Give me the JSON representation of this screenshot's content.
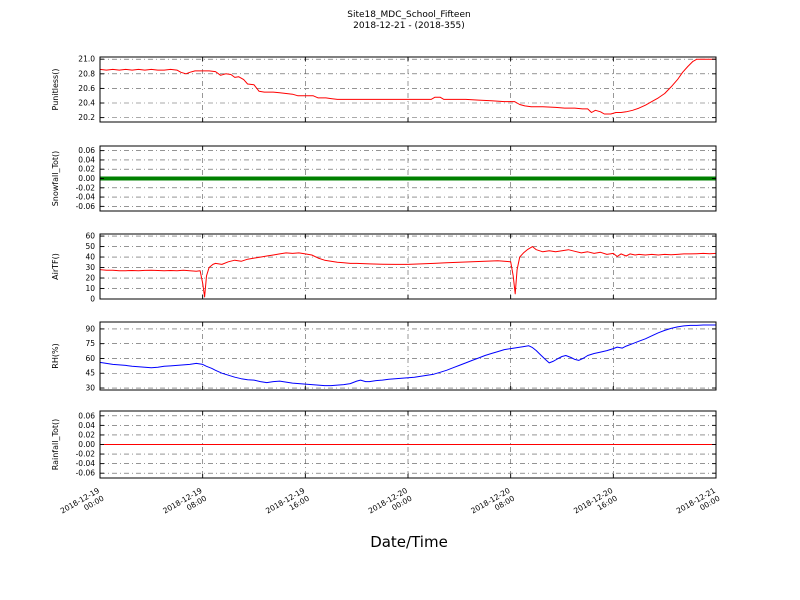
{
  "chart_data": {
    "type": "line",
    "title": "Site18_MDC_School_Fifteen",
    "subtitle": "2018-12-21 - (2018-355)",
    "xlabel": "Date/Time",
    "grid": true,
    "legend": "none",
    "x_axis": {
      "range": [
        0,
        48
      ],
      "ticks": [
        0,
        8,
        16,
        24,
        32,
        40,
        48
      ],
      "tick_labels": [
        "2018-12-19 00:00",
        "2018-12-19 08:00",
        "2018-12-19 16:00",
        "2018-12-20 00:00",
        "2018-12-20 08:00",
        "2018-12-20 16:00",
        "2018-12-21 00:00"
      ]
    },
    "panels": [
      {
        "ylabel": "Punitless()",
        "color": "#ff0000",
        "line_width": 1,
        "ylim": [
          20.14,
          21.03
        ],
        "ytick_values": [
          20.2,
          20.4,
          20.6,
          20.8,
          21.0
        ],
        "ytick_labels": [
          "20.2",
          "20.4",
          "20.6",
          "20.8",
          "21.0"
        ],
        "x": [
          0,
          0.5,
          1,
          1.5,
          2,
          2.5,
          3,
          3.5,
          4,
          4.5,
          5,
          5.5,
          6,
          6.3,
          6.7,
          7,
          7.4,
          8,
          8.5,
          9,
          9.4,
          9.8,
          10.2,
          10.5,
          10.8,
          11.2,
          11.5,
          12,
          12.4,
          12.8,
          13.5,
          14,
          14.5,
          15,
          15.4,
          16,
          16.6,
          17,
          17.6,
          18,
          18.5,
          19,
          20,
          21,
          22,
          23,
          24,
          25,
          25.8,
          26.1,
          26.5,
          26.8,
          27.5,
          28.5,
          29.5,
          30.5,
          31.5,
          32.3,
          32.7,
          33.1,
          33.6,
          34.5,
          35.5,
          36.2,
          37,
          37.6,
          38,
          38.3,
          38.6,
          39,
          39.3,
          39.8,
          40.2,
          40.6,
          41,
          41.5,
          42,
          42.5,
          43,
          43.5,
          44,
          44.5,
          45,
          45.4,
          45.8,
          46.2,
          46.5,
          47,
          47.5,
          48
        ],
        "y": [
          20.86,
          20.85,
          20.86,
          20.85,
          20.86,
          20.85,
          20.86,
          20.85,
          20.86,
          20.85,
          20.85,
          20.86,
          20.85,
          20.82,
          20.8,
          20.82,
          20.84,
          20.84,
          20.84,
          20.83,
          20.78,
          20.8,
          20.79,
          20.75,
          20.76,
          20.72,
          20.66,
          20.65,
          20.56,
          20.55,
          20.55,
          20.54,
          20.53,
          20.52,
          20.5,
          20.5,
          20.5,
          20.47,
          20.47,
          20.46,
          20.45,
          20.45,
          20.45,
          20.45,
          20.45,
          20.45,
          20.45,
          20.45,
          20.45,
          20.48,
          20.48,
          20.45,
          20.45,
          20.45,
          20.44,
          20.43,
          20.42,
          20.42,
          20.38,
          20.36,
          20.35,
          20.35,
          20.34,
          20.33,
          20.33,
          20.32,
          20.32,
          20.27,
          20.3,
          20.28,
          20.25,
          20.25,
          20.27,
          20.27,
          20.28,
          20.3,
          20.33,
          20.37,
          20.42,
          20.47,
          20.53,
          20.62,
          20.72,
          20.82,
          20.9,
          20.97,
          21.0,
          21.0,
          21.0,
          21.0
        ]
      },
      {
        "ylabel": "Snowfall_Tot()",
        "color": "#008000",
        "line_width": 4,
        "ylim": [
          -0.07,
          0.07
        ],
        "ytick_values": [
          -0.06,
          -0.04,
          -0.02,
          0.0,
          0.02,
          0.04,
          0.06
        ],
        "ytick_labels": [
          "-0.06",
          "-0.04",
          "-0.02",
          "0.00",
          "0.02",
          "0.04",
          "0.06"
        ],
        "x": [
          0,
          48
        ],
        "y": [
          0,
          0
        ]
      },
      {
        "ylabel": "AirTF()",
        "color": "#ff0000",
        "line_width": 1,
        "ylim": [
          0,
          62
        ],
        "ytick_values": [
          0,
          10,
          20,
          30,
          40,
          50,
          60
        ],
        "ytick_labels": [
          "0",
          "10",
          "20",
          "30",
          "40",
          "50",
          "60"
        ],
        "x": [
          0,
          0.5,
          1,
          1.5,
          2,
          2.5,
          3,
          3.5,
          4,
          4.5,
          5,
          5.5,
          6,
          6.5,
          7,
          7.5,
          7.8,
          8,
          8.15,
          8.3,
          8.5,
          8.8,
          9,
          9.5,
          10,
          10.5,
          11,
          11.5,
          12,
          12.5,
          13,
          13.5,
          14,
          14.5,
          15,
          15.5,
          16,
          16.5,
          17,
          17.5,
          18,
          18.5,
          19,
          19.5,
          20,
          21,
          22,
          23,
          24,
          25,
          26,
          27,
          28,
          29,
          30,
          30.5,
          31,
          31.5,
          32,
          32.2,
          32.35,
          32.5,
          32.7,
          33,
          33.3,
          33.7,
          34,
          34.5,
          35,
          35.5,
          36,
          36.5,
          37,
          37.5,
          38,
          38.5,
          39,
          39.5,
          40,
          40.3,
          40.6,
          41,
          41.3,
          41.7,
          42,
          42.5,
          43,
          43.5,
          44,
          44.5,
          45,
          45.5,
          46,
          46.5,
          47,
          47.5,
          48
        ],
        "y": [
          28,
          27.5,
          27.5,
          27,
          27,
          27.2,
          27,
          27.3,
          27.5,
          27.2,
          27,
          27.2,
          27,
          27.5,
          27,
          26.5,
          27,
          15,
          2,
          22,
          30,
          33,
          34,
          33,
          35.5,
          37,
          36,
          38,
          39,
          40,
          41,
          42,
          43,
          44,
          43.5,
          44,
          43,
          42,
          39,
          37,
          36,
          35,
          34.5,
          34,
          34,
          33.5,
          33.2,
          33,
          33,
          33.5,
          34,
          34.5,
          35,
          35.5,
          36,
          36.2,
          36.5,
          36,
          35.5,
          22,
          5,
          28,
          40,
          44,
          47,
          50,
          47,
          45,
          46,
          45,
          46,
          47,
          45.5,
          44,
          45,
          43.5,
          44.5,
          42.5,
          43.5,
          40.5,
          43,
          41,
          43,
          42,
          42.5,
          42,
          42.5,
          42,
          42.5,
          42.2,
          42.5,
          43,
          43,
          43.2,
          43.5,
          43.2,
          43.5
        ]
      },
      {
        "ylabel": "RH(%)",
        "color": "#0000ff",
        "line_width": 1,
        "ylim": [
          28,
          97
        ],
        "ytick_values": [
          30,
          45,
          60,
          75,
          90
        ],
        "ytick_labels": [
          "30",
          "45",
          "60",
          "75",
          "90"
        ],
        "x": [
          0,
          0.5,
          1,
          1.5,
          2,
          2.5,
          3,
          3.5,
          4,
          4.5,
          5,
          5.5,
          6,
          6.5,
          7,
          7.5,
          8,
          8.3,
          8.7,
          9,
          9.5,
          10,
          10.5,
          11,
          11.5,
          12,
          12.5,
          13,
          13.5,
          14,
          14.5,
          15,
          15.5,
          16,
          16.5,
          17,
          17.5,
          18,
          18.5,
          19,
          19.5,
          20,
          20.3,
          20.7,
          21,
          21.5,
          22,
          22.5,
          23,
          23.5,
          24,
          24.5,
          25,
          25.5,
          26,
          26.5,
          27,
          27.5,
          28,
          28.5,
          29,
          29.5,
          30,
          30.5,
          31,
          31.5,
          32,
          32.5,
          33,
          33.4,
          33.7,
          34,
          34.3,
          34.7,
          35,
          35.3,
          35.7,
          36,
          36.3,
          36.7,
          37,
          37.3,
          37.7,
          38,
          38.5,
          39,
          39.5,
          40,
          40.3,
          40.7,
          41,
          41.5,
          42,
          42.5,
          43,
          43.5,
          44,
          44.5,
          45,
          45.5,
          46,
          46.5,
          47,
          47.5,
          48
        ],
        "y": [
          56,
          55,
          54,
          53.5,
          53,
          52,
          51.5,
          51,
          50.5,
          51,
          52,
          52.5,
          53,
          53.5,
          54,
          55,
          54,
          52,
          50,
          48,
          45,
          43,
          41,
          39.5,
          38.5,
          38,
          36.5,
          35.5,
          36.5,
          37,
          36,
          35,
          34.5,
          34,
          33.5,
          33,
          32.5,
          32.5,
          33,
          33.5,
          34.5,
          37,
          38,
          36.5,
          36.5,
          37.5,
          38,
          39,
          39.5,
          40,
          40.5,
          41,
          42,
          43,
          44,
          46,
          48,
          50.5,
          53,
          55.5,
          58,
          60.5,
          63,
          65,
          67,
          69,
          70,
          71,
          72,
          73,
          71,
          68,
          64,
          59,
          55.5,
          57,
          60,
          62,
          63,
          61,
          59,
          58,
          60.5,
          63,
          65,
          66.5,
          68,
          70,
          71.5,
          70.5,
          72.5,
          75,
          77.5,
          80,
          83,
          86,
          88.5,
          90.5,
          92,
          93,
          93.5,
          93.5,
          94,
          94,
          94
        ]
      },
      {
        "ylabel": "Rainfall_Tot()",
        "color": "#ff0000",
        "line_width": 1,
        "ylim": [
          -0.07,
          0.07
        ],
        "ytick_values": [
          -0.06,
          -0.04,
          -0.02,
          0.0,
          0.02,
          0.04,
          0.06
        ],
        "ytick_labels": [
          "-0.06",
          "-0.04",
          "-0.02",
          "0.00",
          "0.02",
          "0.04",
          "0.06"
        ],
        "x": [
          0,
          48
        ],
        "y": [
          0,
          0
        ]
      }
    ]
  }
}
